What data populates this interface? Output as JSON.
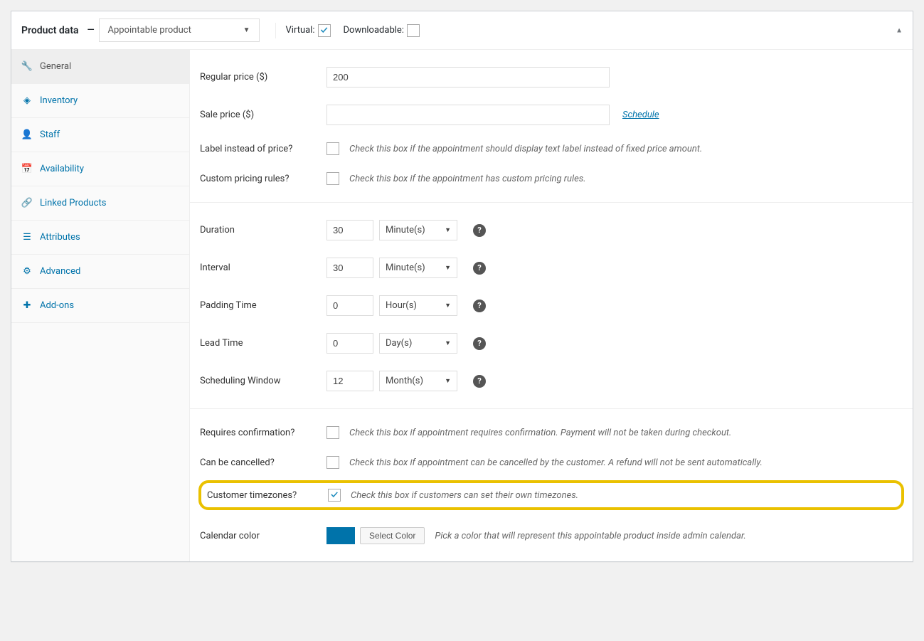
{
  "header": {
    "title": "Product data",
    "product_type": "Appointable product",
    "virtual_label": "Virtual:",
    "virtual_checked": true,
    "downloadable_label": "Downloadable:",
    "downloadable_checked": false
  },
  "tabs": [
    {
      "key": "general",
      "label": "General",
      "active": true
    },
    {
      "key": "inventory",
      "label": "Inventory",
      "active": false
    },
    {
      "key": "staff",
      "label": "Staff",
      "active": false
    },
    {
      "key": "availability",
      "label": "Availability",
      "active": false
    },
    {
      "key": "linked",
      "label": "Linked Products",
      "active": false
    },
    {
      "key": "attributes",
      "label": "Attributes",
      "active": false
    },
    {
      "key": "advanced",
      "label": "Advanced",
      "active": false
    },
    {
      "key": "addons",
      "label": "Add-ons",
      "active": false
    }
  ],
  "pricing": {
    "regular_label": "Regular price ($)",
    "regular_value": "200",
    "sale_label": "Sale price ($)",
    "sale_value": "",
    "schedule_label": "Schedule",
    "label_instead_label": "Label instead of price?",
    "label_instead_checked": false,
    "label_instead_desc": "Check this box if the appointment should display text label instead of fixed price amount.",
    "custom_rules_label": "Custom pricing rules?",
    "custom_rules_checked": false,
    "custom_rules_desc": "Check this box if the appointment has custom pricing rules."
  },
  "timing": {
    "duration_label": "Duration",
    "duration_value": "30",
    "duration_unit": "Minute(s)",
    "interval_label": "Interval",
    "interval_value": "30",
    "interval_unit": "Minute(s)",
    "padding_label": "Padding Time",
    "padding_value": "0",
    "padding_unit": "Hour(s)",
    "lead_label": "Lead Time",
    "lead_value": "0",
    "lead_unit": "Day(s)",
    "window_label": "Scheduling Window",
    "window_value": "12",
    "window_unit": "Month(s)"
  },
  "options": {
    "confirm_label": "Requires confirmation?",
    "confirm_checked": false,
    "confirm_desc": "Check this box if appointment requires confirmation. Payment will not be taken during checkout.",
    "cancel_label": "Can be cancelled?",
    "cancel_checked": false,
    "cancel_desc": "Check this box if appointment can be cancelled by the customer. A refund will not be sent automatically.",
    "tz_label": "Customer timezones?",
    "tz_checked": true,
    "tz_desc": "Check this box if customers can set their own timezones.",
    "color_label": "Calendar color",
    "color_value": "#0073aa",
    "color_button": "Select Color",
    "color_desc": "Pick a color that will represent this appointable product inside admin calendar."
  },
  "colors": {
    "link": "#0073aa",
    "active_tab_bg": "#eee",
    "border": "#ddd",
    "highlight": "#eac100"
  }
}
